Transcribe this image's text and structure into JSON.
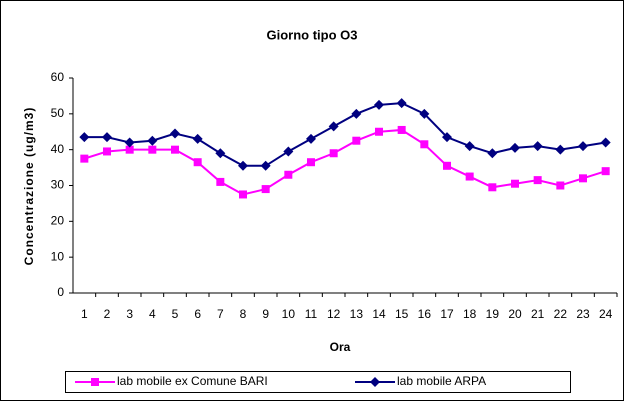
{
  "chart_data": {
    "type": "line",
    "title": "Giorno tipo O3",
    "x_label": "Ora",
    "y_label": "Concentrazione (ug/m3)",
    "categories": [
      "1",
      "2",
      "3",
      "4",
      "5",
      "6",
      "7",
      "8",
      "9",
      "10",
      "11",
      "12",
      "13",
      "14",
      "15",
      "16",
      "17",
      "18",
      "19",
      "20",
      "21",
      "22",
      "23",
      "24"
    ],
    "series": [
      {
        "name": "lab mobile ex Comune BARI",
        "color": "#ff00ff",
        "marker": "square",
        "values": [
          37.5,
          39.5,
          40,
          40,
          40,
          36.5,
          31,
          27.5,
          29,
          33,
          36.5,
          39,
          42.5,
          45,
          45.5,
          41.5,
          35.5,
          32.5,
          29.5,
          30.5,
          31.5,
          30,
          32,
          34
        ]
      },
      {
        "name": "lab mobile ARPA",
        "color": "#000080",
        "marker": "diamond",
        "values": [
          43.5,
          43.5,
          42,
          42.5,
          44.5,
          43,
          39,
          35.5,
          35.5,
          39.5,
          43,
          46.5,
          50,
          52.5,
          53,
          50,
          43.5,
          41,
          39,
          40.5,
          41,
          40,
          41,
          42
        ]
      }
    ],
    "ylim": [
      0,
      60
    ],
    "yticks": [
      0,
      10,
      20,
      30,
      40,
      50,
      60
    ],
    "grid": false
  }
}
